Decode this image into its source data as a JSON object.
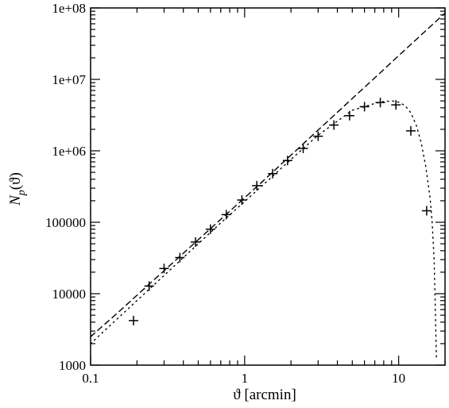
{
  "chart_data": {
    "type": "scatter",
    "title": "",
    "xlabel": "ϑ [arcmin]",
    "ylabel_main": "N",
    "ylabel_sub": "p",
    "ylabel_arg": "(ϑ)",
    "xscale": "log",
    "yscale": "log",
    "xlim": [
      0.1,
      20
    ],
    "ylim": [
      1000,
      100000000
    ],
    "grid": false,
    "legend": "none",
    "x_ticks": [
      {
        "value": 0.1,
        "label": "0.1"
      },
      {
        "value": 1,
        "label": "1"
      },
      {
        "value": 10,
        "label": "10"
      }
    ],
    "y_ticks": [
      {
        "value": 1000,
        "label": "1000"
      },
      {
        "value": 10000,
        "label": "10000"
      },
      {
        "value": 100000,
        "label": "100000"
      },
      {
        "value": 1000000,
        "label": "1e+06"
      },
      {
        "value": 10000000,
        "label": "1e+07"
      },
      {
        "value": 100000000,
        "label": "1e+08"
      }
    ],
    "series": [
      {
        "style": "dashed",
        "x": [
          0.1,
          0.15,
          0.2,
          0.3,
          0.5,
          0.7,
          1,
          1.5,
          2,
          3,
          5,
          7,
          10,
          15,
          20
        ],
        "y": [
          2500,
          5400,
          9500,
          21000,
          57000,
          110000,
          220000,
          490000,
          870000,
          1950000,
          5400000,
          10500000,
          21500000,
          48000000,
          85000000
        ]
      },
      {
        "style": "dotted",
        "x": [
          0.1,
          0.15,
          0.2,
          0.3,
          0.5,
          0.7,
          1,
          1.5,
          2,
          3,
          5,
          7,
          8,
          9,
          10,
          11,
          12,
          13,
          14,
          15,
          16,
          16.5,
          17,
          17.3,
          17.6
        ],
        "y": [
          2000,
          4500,
          8000,
          18000,
          50000,
          98000,
          195000,
          430000,
          760000,
          1650000,
          3700000,
          4600000,
          4900000,
          5000000,
          4800000,
          4300000,
          3400000,
          2300000,
          1300000,
          600000,
          220000,
          100000,
          30000,
          6000,
          1200
        ]
      },
      {
        "style": "plus",
        "x": [
          0.19,
          0.24,
          0.3,
          0.38,
          0.48,
          0.6,
          0.76,
          0.96,
          1.2,
          1.52,
          1.9,
          2.4,
          3.0,
          3.8,
          4.8,
          6.0,
          7.6,
          9.6,
          12.0,
          15.2
        ],
        "y": [
          4200,
          12800,
          22500,
          32000,
          53000,
          80000,
          128000,
          205000,
          325000,
          480000,
          730000,
          1080000,
          1600000,
          2300000,
          3100000,
          4150000,
          4750000,
          4400000,
          1900000,
          145000
        ]
      }
    ]
  }
}
